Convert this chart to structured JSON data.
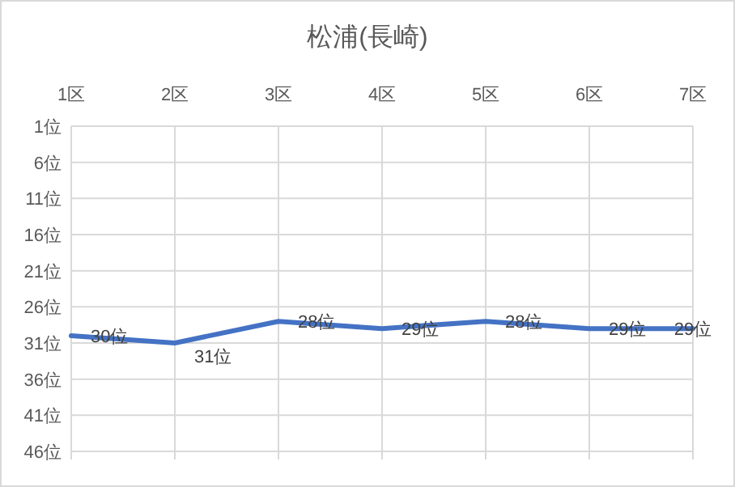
{
  "chart_data": {
    "type": "line",
    "title": "松浦(長崎)",
    "categories": [
      "1区",
      "2区",
      "3区",
      "4区",
      "5区",
      "6区",
      "7区"
    ],
    "series": [
      {
        "color": "#4472c4",
        "values": [
          30,
          31,
          28,
          29,
          28,
          29,
          29
        ],
        "value_labels": [
          "30位",
          "31位",
          "28位",
          "29位",
          "28位",
          "29位",
          "29位"
        ]
      }
    ],
    "ylim": [
      46,
      1
    ],
    "yticks": [
      {
        "value": 1,
        "label": "1位"
      },
      {
        "value": 6,
        "label": "6位"
      },
      {
        "value": 11,
        "label": "11位"
      },
      {
        "value": 16,
        "label": "16位"
      },
      {
        "value": 21,
        "label": "21位"
      },
      {
        "value": 26,
        "label": "26位"
      },
      {
        "value": 31,
        "label": "31位"
      },
      {
        "value": 36,
        "label": "36位"
      },
      {
        "value": 41,
        "label": "41位"
      },
      {
        "value": 46,
        "label": "46位"
      }
    ],
    "grid": true,
    "marker": "none",
    "line_style": "solid"
  }
}
